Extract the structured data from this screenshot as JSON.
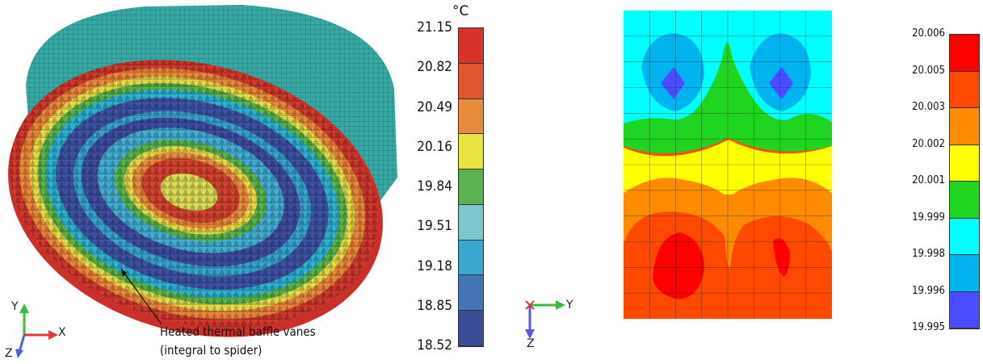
{
  "panel_left": {
    "annotation": {
      "line1": "Heated thermal baffle vanes",
      "line2": "(integral to spider)"
    },
    "colorbar": {
      "unit": "°C",
      "labels": [
        "21.15",
        "20.82",
        "20.49",
        "20.16",
        "19.84",
        "19.51",
        "19.18",
        "18.85",
        "18.52"
      ],
      "colors": [
        "#d8332b",
        "#df5631",
        "#e78c3a",
        "#e9e33f",
        "#5bb04f",
        "#7cc7cc",
        "#3aa7cf",
        "#4375b4",
        "#3c4d97"
      ]
    },
    "axes": {
      "up": "Y",
      "right": "X",
      "down": "Z"
    }
  },
  "panel_right": {
    "colorbar": {
      "labels": [
        "20.006",
        "20.005",
        "20.003",
        "20.002",
        "20.001",
        "19.999",
        "19.998",
        "19.996",
        "19.995"
      ],
      "colors": [
        "#ff0000",
        "#ff4800",
        "#ff8c00",
        "#ffff00",
        "#1fd51f",
        "#00ffff",
        "#00b4f0",
        "#4b4bff"
      ]
    },
    "axes": {
      "right": "Y",
      "down": "Z"
    }
  }
}
